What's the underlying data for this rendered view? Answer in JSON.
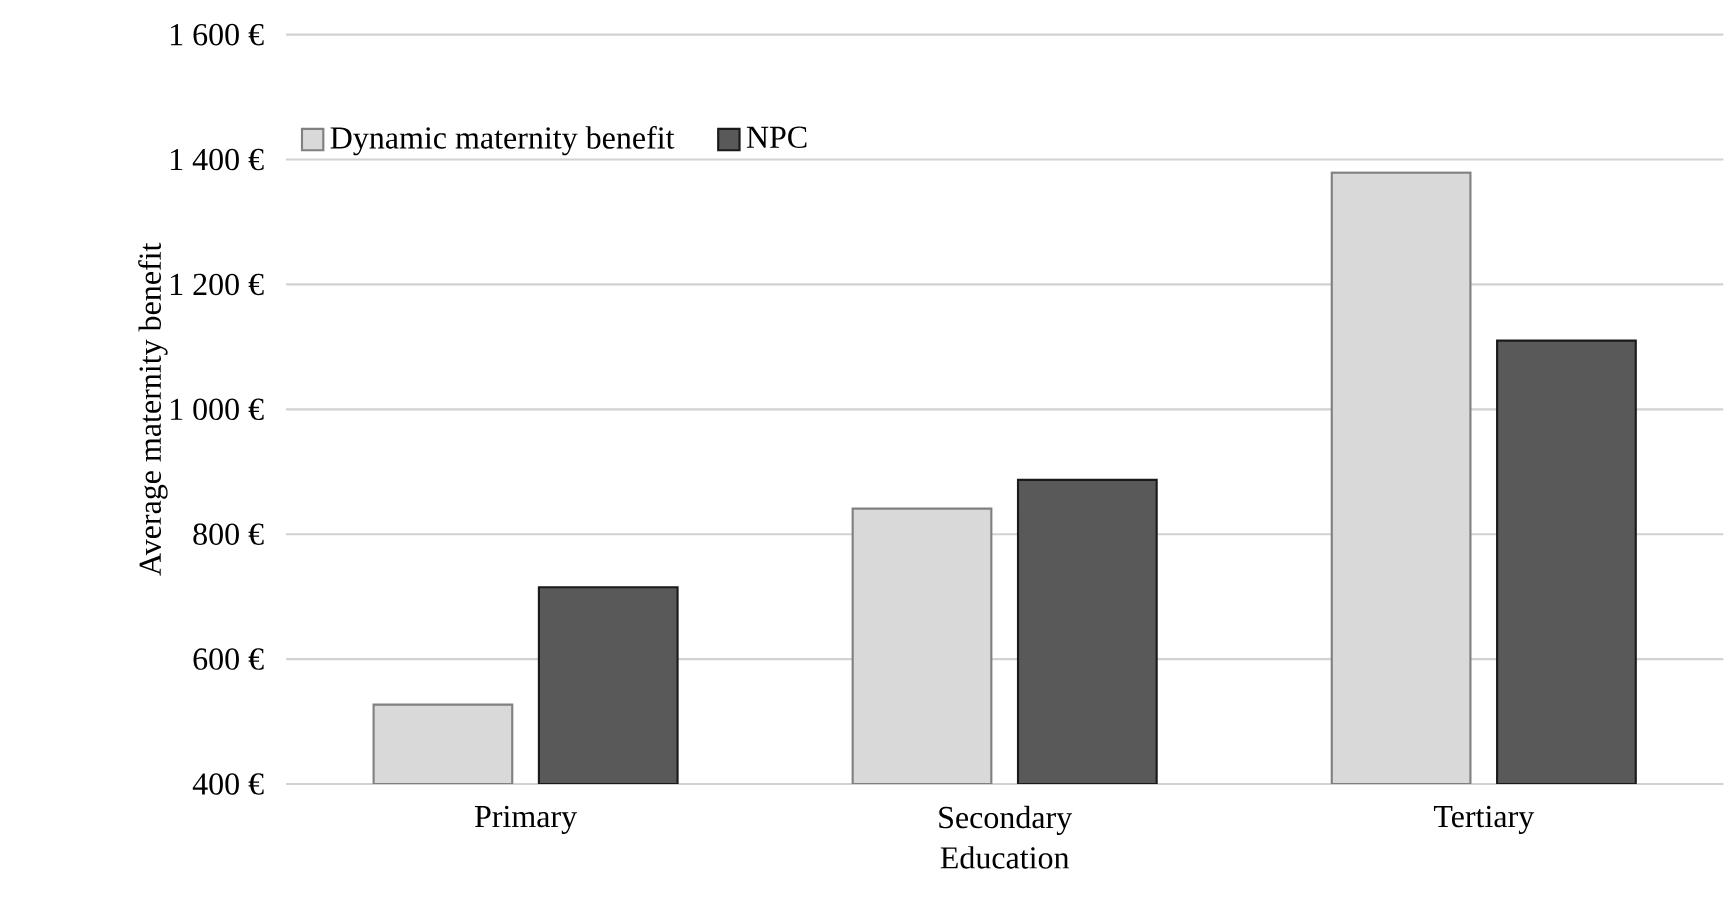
{
  "chart_data": {
    "type": "bar",
    "xlabel": "Education",
    "ylabel": "Average maternity benefit",
    "categories": [
      "Primary",
      "Secondary",
      "Tertiary"
    ],
    "series": [
      {
        "name": "Dynamic maternity benefit",
        "color": "#d9d9d9",
        "values": [
          527,
          841,
          1379
        ]
      },
      {
        "name": "NPC",
        "color": "#595959",
        "values": [
          715,
          887,
          1110
        ]
      }
    ],
    "ylim": [
      400,
      1600
    ],
    "yticks": [
      {
        "value": 400,
        "label": "400 €"
      },
      {
        "value": 600,
        "label": "600 €"
      },
      {
        "value": 800,
        "label": "800 €"
      },
      {
        "value": 1000,
        "label": "1 000 €"
      },
      {
        "value": 1200,
        "label": "1 200 €"
      },
      {
        "value": 1400,
        "label": "1 400 €"
      },
      {
        "value": 1600,
        "label": "1 600 €"
      }
    ],
    "grid": "y",
    "legend": "top left"
  }
}
